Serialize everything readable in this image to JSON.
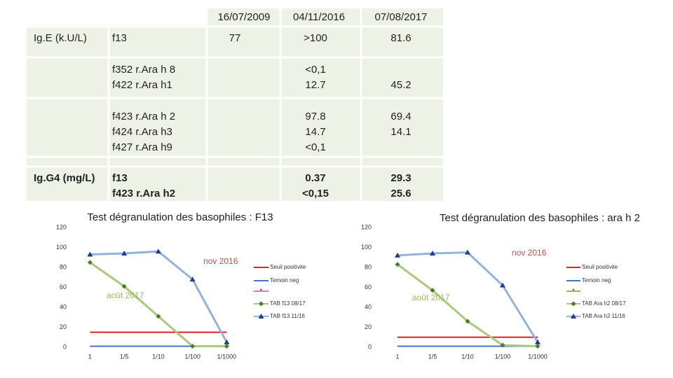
{
  "table": {
    "header": [
      "16/07/2009",
      "04/11/2016",
      "07/08/2017"
    ],
    "rows": [
      {
        "cells": [
          "Ig.E (k.U/L)",
          "f13",
          "77",
          ">100",
          "81.6"
        ]
      },
      {
        "cells": [
          null,
          "f352 r.Ara h 8",
          null,
          "<0,1",
          null
        ]
      },
      {
        "cells": [
          null,
          "f422 r.Ara h1",
          null,
          "12.7",
          "45.2"
        ]
      },
      {
        "cells": [
          null,
          "f423 r.Ara h 2",
          null,
          "97.8",
          "69.4"
        ]
      },
      {
        "cells": [
          null,
          "f424 r.Ara h3",
          null,
          "14.7",
          "14.1"
        ]
      },
      {
        "cells": [
          null,
          "f427 r.Ara h9",
          null,
          "<0,1",
          null
        ]
      },
      {
        "cells": [
          "Ig.G4 (mg/L)",
          "f13",
          null,
          "0.37",
          "29.3"
        ],
        "color": "#c00000"
      },
      {
        "cells": [
          null,
          "f423 r.Ara h2",
          null,
          "<0,15",
          "25.6"
        ],
        "color": "#c00000"
      }
    ]
  },
  "chart_data": [
    {
      "type": "line",
      "title": "Test dégranulation des basophiles : F13",
      "categories": [
        "1",
        "1/5",
        "1/10",
        "1/100",
        "1/1000"
      ],
      "ylim": [
        0,
        120
      ],
      "yticks": [
        0,
        20,
        40,
        60,
        80,
        100,
        120
      ],
      "annotations": [
        {
          "text": "nov 2016",
          "color": "#c0504d"
        },
        {
          "text": "août 2017",
          "color": "#9bbb59"
        }
      ],
      "series": [
        {
          "name": "Seuil positivite",
          "color": "#e02020",
          "marker": null,
          "values": [
            15,
            15,
            15,
            15,
            15
          ]
        },
        {
          "name": "Temoin neg",
          "color": "#4472c4",
          "marker": null,
          "values": [
            1,
            1,
            1,
            1,
            1
          ]
        },
        {
          "name": null,
          "color": "#ff66cc",
          "marker": "star",
          "values": [
            null,
            null,
            null,
            null,
            null
          ]
        },
        {
          "name": "TAB f13 08/17",
          "color": "#a9c97a",
          "marker_color": "#4f7a28",
          "marker": "diamond",
          "values": [
            85,
            61,
            31,
            1,
            1
          ]
        },
        {
          "name": "TAB f13 11/16",
          "color": "#95b3d7",
          "marker_color": "#1f3c88",
          "marker": "triangle",
          "values": [
            93,
            94,
            96,
            68,
            5
          ]
        }
      ]
    },
    {
      "type": "line",
      "title": "Test dégranulation des basophiles : ara h 2",
      "categories": [
        "1",
        "1/5",
        "1/10",
        "1/100",
        "1/1000"
      ],
      "ylim": [
        0,
        120
      ],
      "yticks": [
        0,
        20,
        40,
        60,
        80,
        100,
        120
      ],
      "annotations": [
        {
          "text": "nov 2016",
          "color": "#c0504d"
        },
        {
          "text": "août 2017",
          "color": "#9bbb59"
        }
      ],
      "series": [
        {
          "name": "Seuil positivite",
          "color": "#e02020",
          "marker": null,
          "values": [
            10,
            10,
            10,
            10,
            10
          ]
        },
        {
          "name": "Temoin neg",
          "color": "#4472c4",
          "marker": null,
          "values": [
            1,
            1,
            1,
            1,
            1
          ]
        },
        {
          "name": null,
          "color": "#9bbb59",
          "marker": "star",
          "values": [
            null,
            null,
            null,
            null,
            null
          ]
        },
        {
          "name": "TAB Ara h2 08/17",
          "color": "#a9c97a",
          "marker_color": "#4f7a28",
          "marker": "diamond",
          "values": [
            83,
            57,
            26,
            2,
            1
          ]
        },
        {
          "name": "TAB Ara h2 11/16",
          "color": "#95b3d7",
          "marker_color": "#1f3c88",
          "marker": "triangle",
          "values": [
            92,
            94,
            95,
            62,
            5
          ]
        }
      ]
    }
  ]
}
